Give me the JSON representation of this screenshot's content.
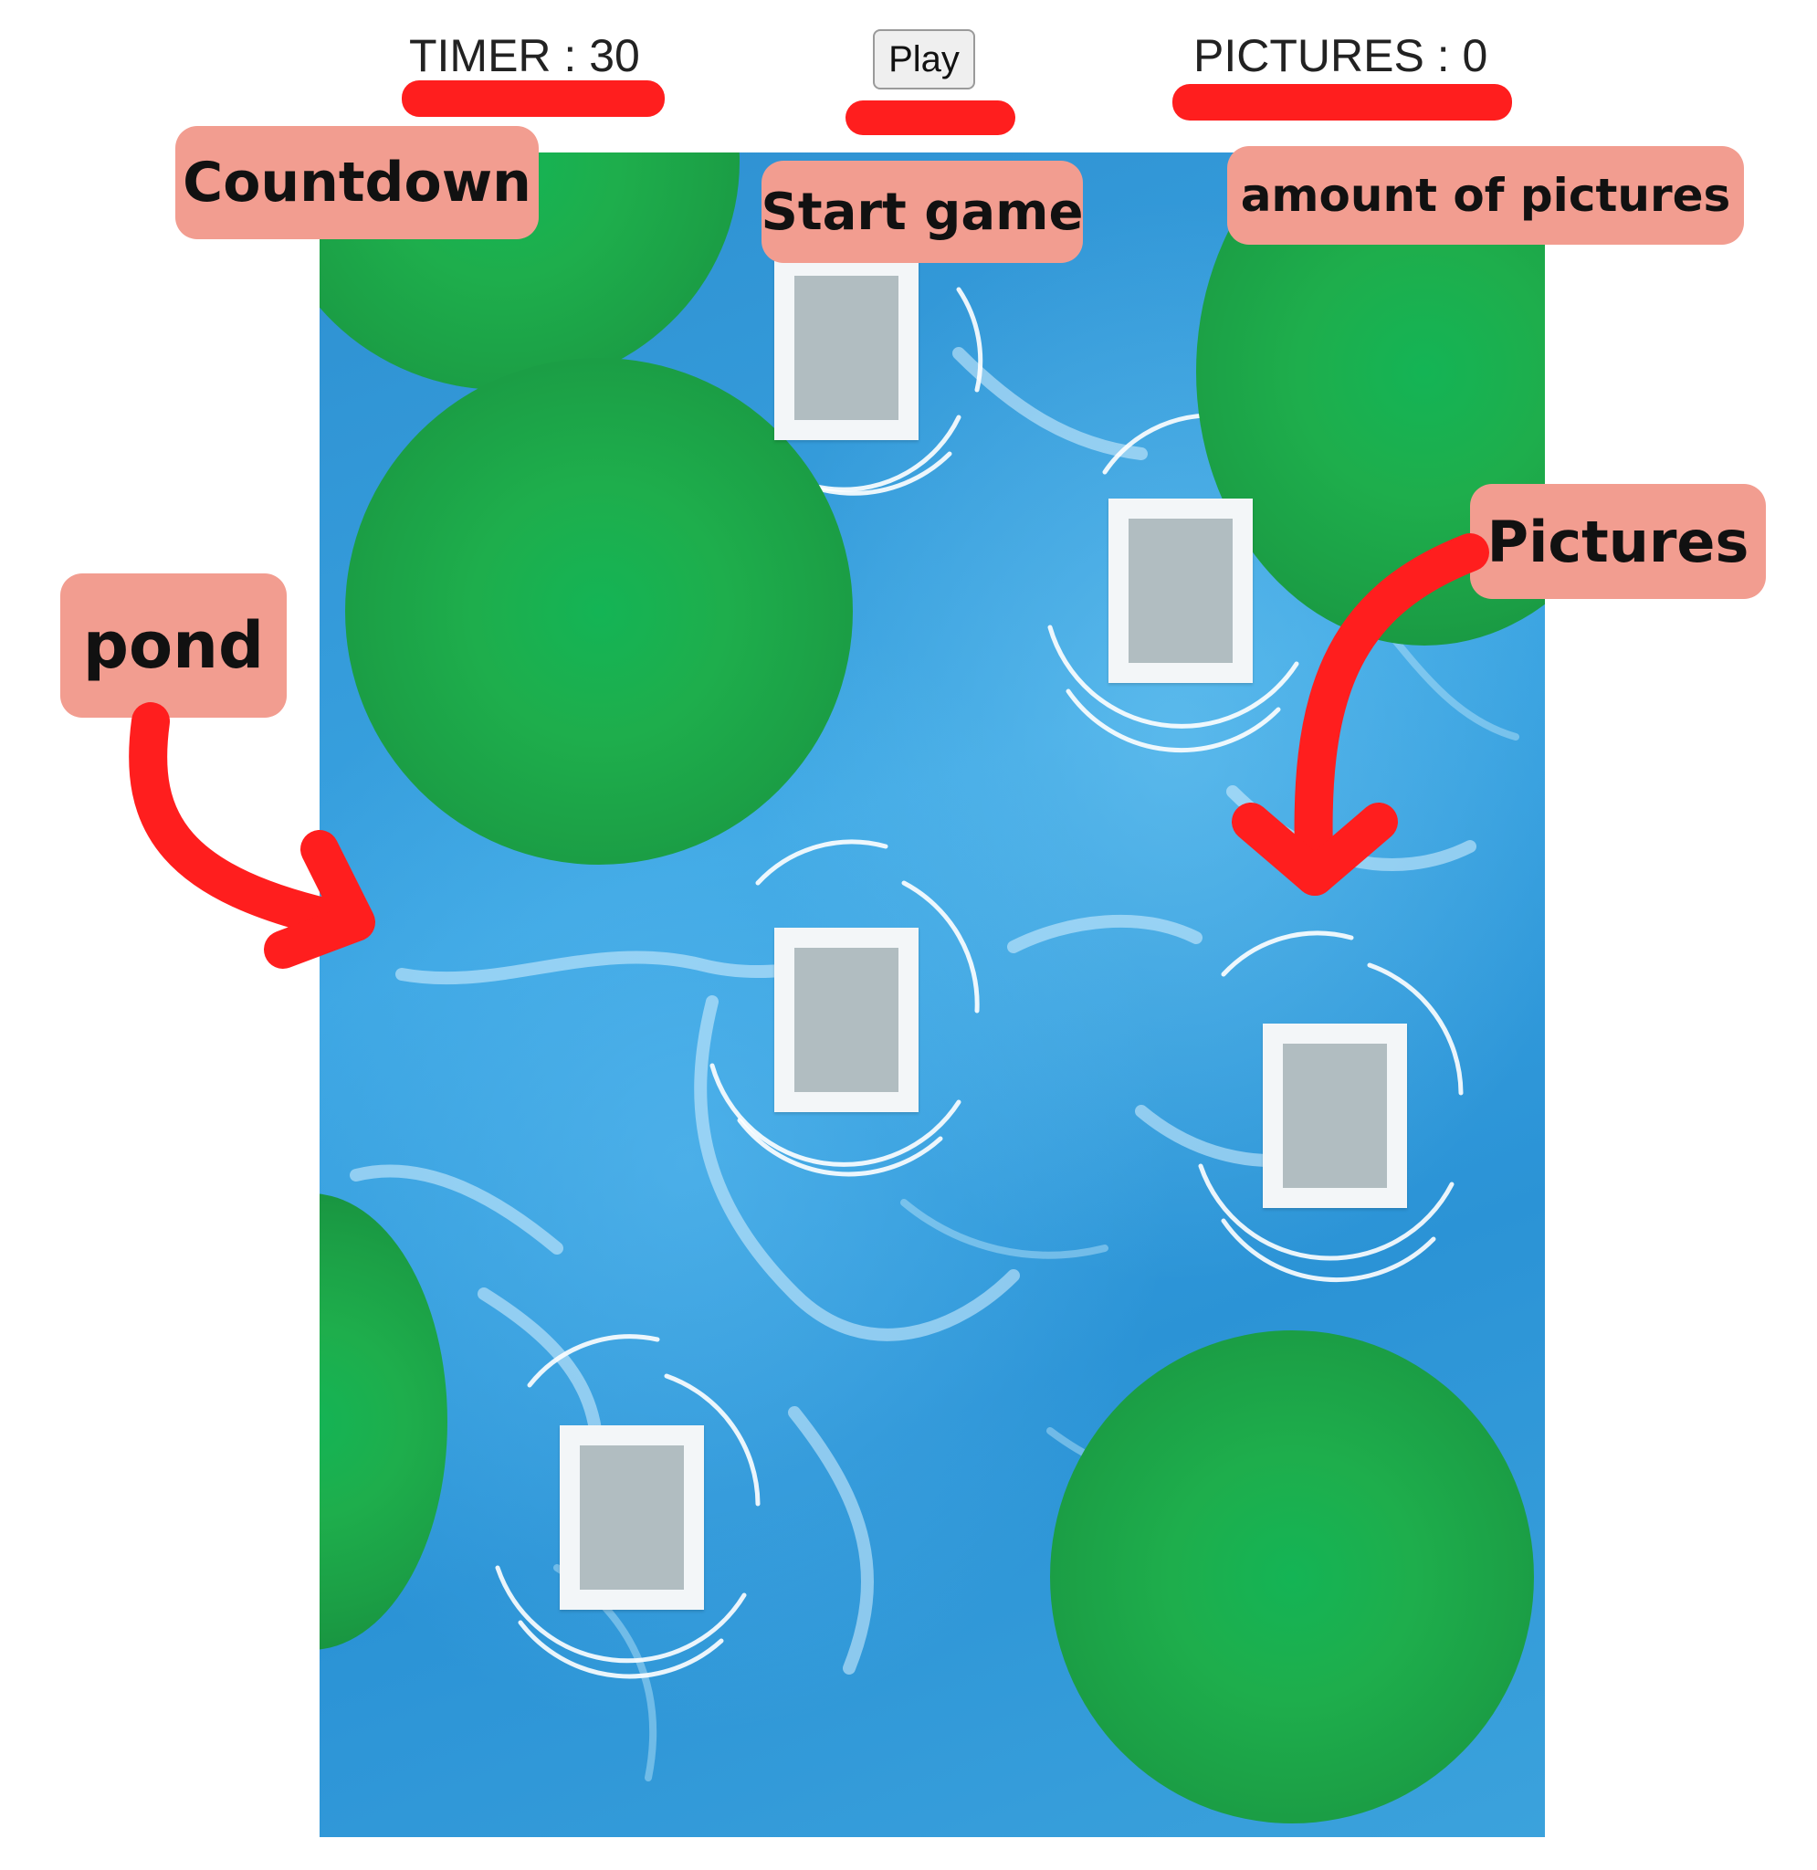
{
  "hud": {
    "timer_text": "TIMER : 30",
    "play_label": "Play",
    "pictures_text": "PICTURES : 0"
  },
  "annotations": {
    "countdown": "Countdown",
    "start_game": "Start game",
    "amount_of_pictures": "amount of pictures",
    "pictures": "Pictures",
    "pond": "pond"
  },
  "colors": {
    "annotation_bg": "#f29d90",
    "annotation_marker": "#ff1e1e",
    "water": "#2d8fd0",
    "lily_pad": "#1eae4c",
    "frame": "#f3f6f8",
    "frame_glass": "#b1bdc1"
  },
  "pictures": [
    {
      "name": "picture-1",
      "icon": "photo-frame-icon"
    },
    {
      "name": "picture-2",
      "icon": "photo-frame-icon"
    },
    {
      "name": "picture-3",
      "icon": "photo-frame-icon"
    },
    {
      "name": "picture-4",
      "icon": "photo-frame-icon"
    },
    {
      "name": "picture-5",
      "icon": "photo-frame-icon"
    }
  ]
}
